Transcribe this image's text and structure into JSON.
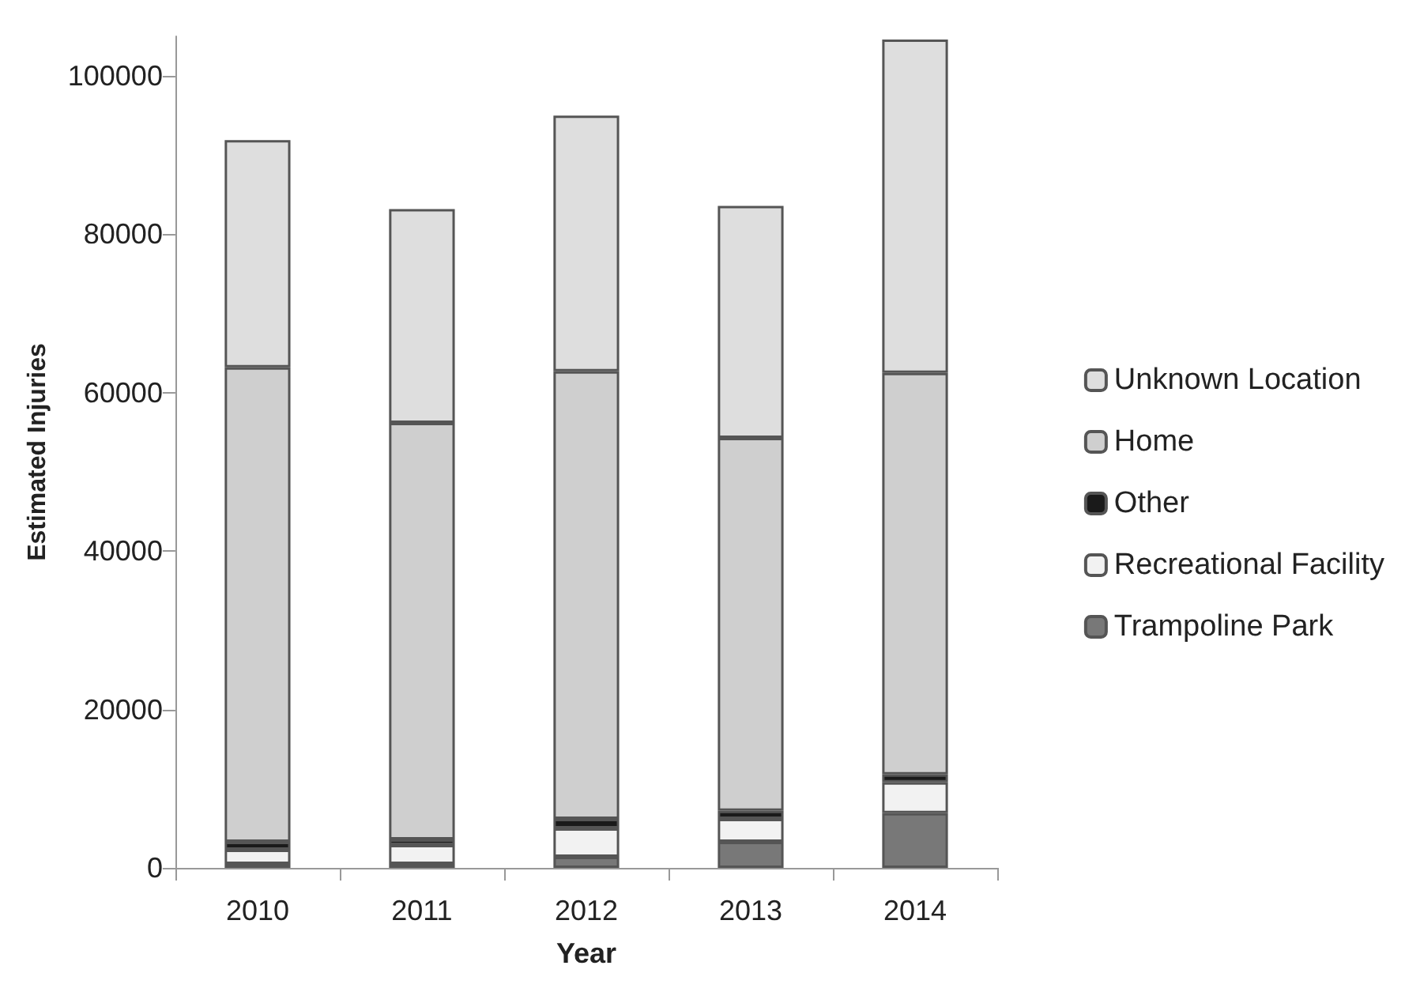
{
  "chart_data": {
    "type": "bar",
    "stacked": true,
    "xlabel": "Year",
    "ylabel": "Estimated Injuries",
    "categories": [
      "2010",
      "2011",
      "2012",
      "2013",
      "2014"
    ],
    "series": [
      {
        "name": "Trampoline Park",
        "color": "#787878",
        "values": [
          500,
          500,
          1400,
          3300,
          6900
        ]
      },
      {
        "name": "Recreational Facility",
        "color": "#f2f2f2",
        "values": [
          1800,
          2400,
          3600,
          2900,
          3900
        ]
      },
      {
        "name": "Other",
        "color": "#1a1a1a",
        "values": [
          1000,
          700,
          1200,
          1000,
          1000
        ]
      },
      {
        "name": "Home",
        "color": "#cfcfcf",
        "values": [
          59900,
          52600,
          56500,
          47100,
          50700
        ]
      },
      {
        "name": "Unknown Location",
        "color": "#dedede",
        "values": [
          28700,
          27000,
          32300,
          29300,
          42100
        ]
      }
    ],
    "ylim": [
      0,
      105000
    ],
    "yticks": [
      0,
      20000,
      40000,
      60000,
      80000,
      100000
    ],
    "grid": false,
    "legend": "right"
  }
}
